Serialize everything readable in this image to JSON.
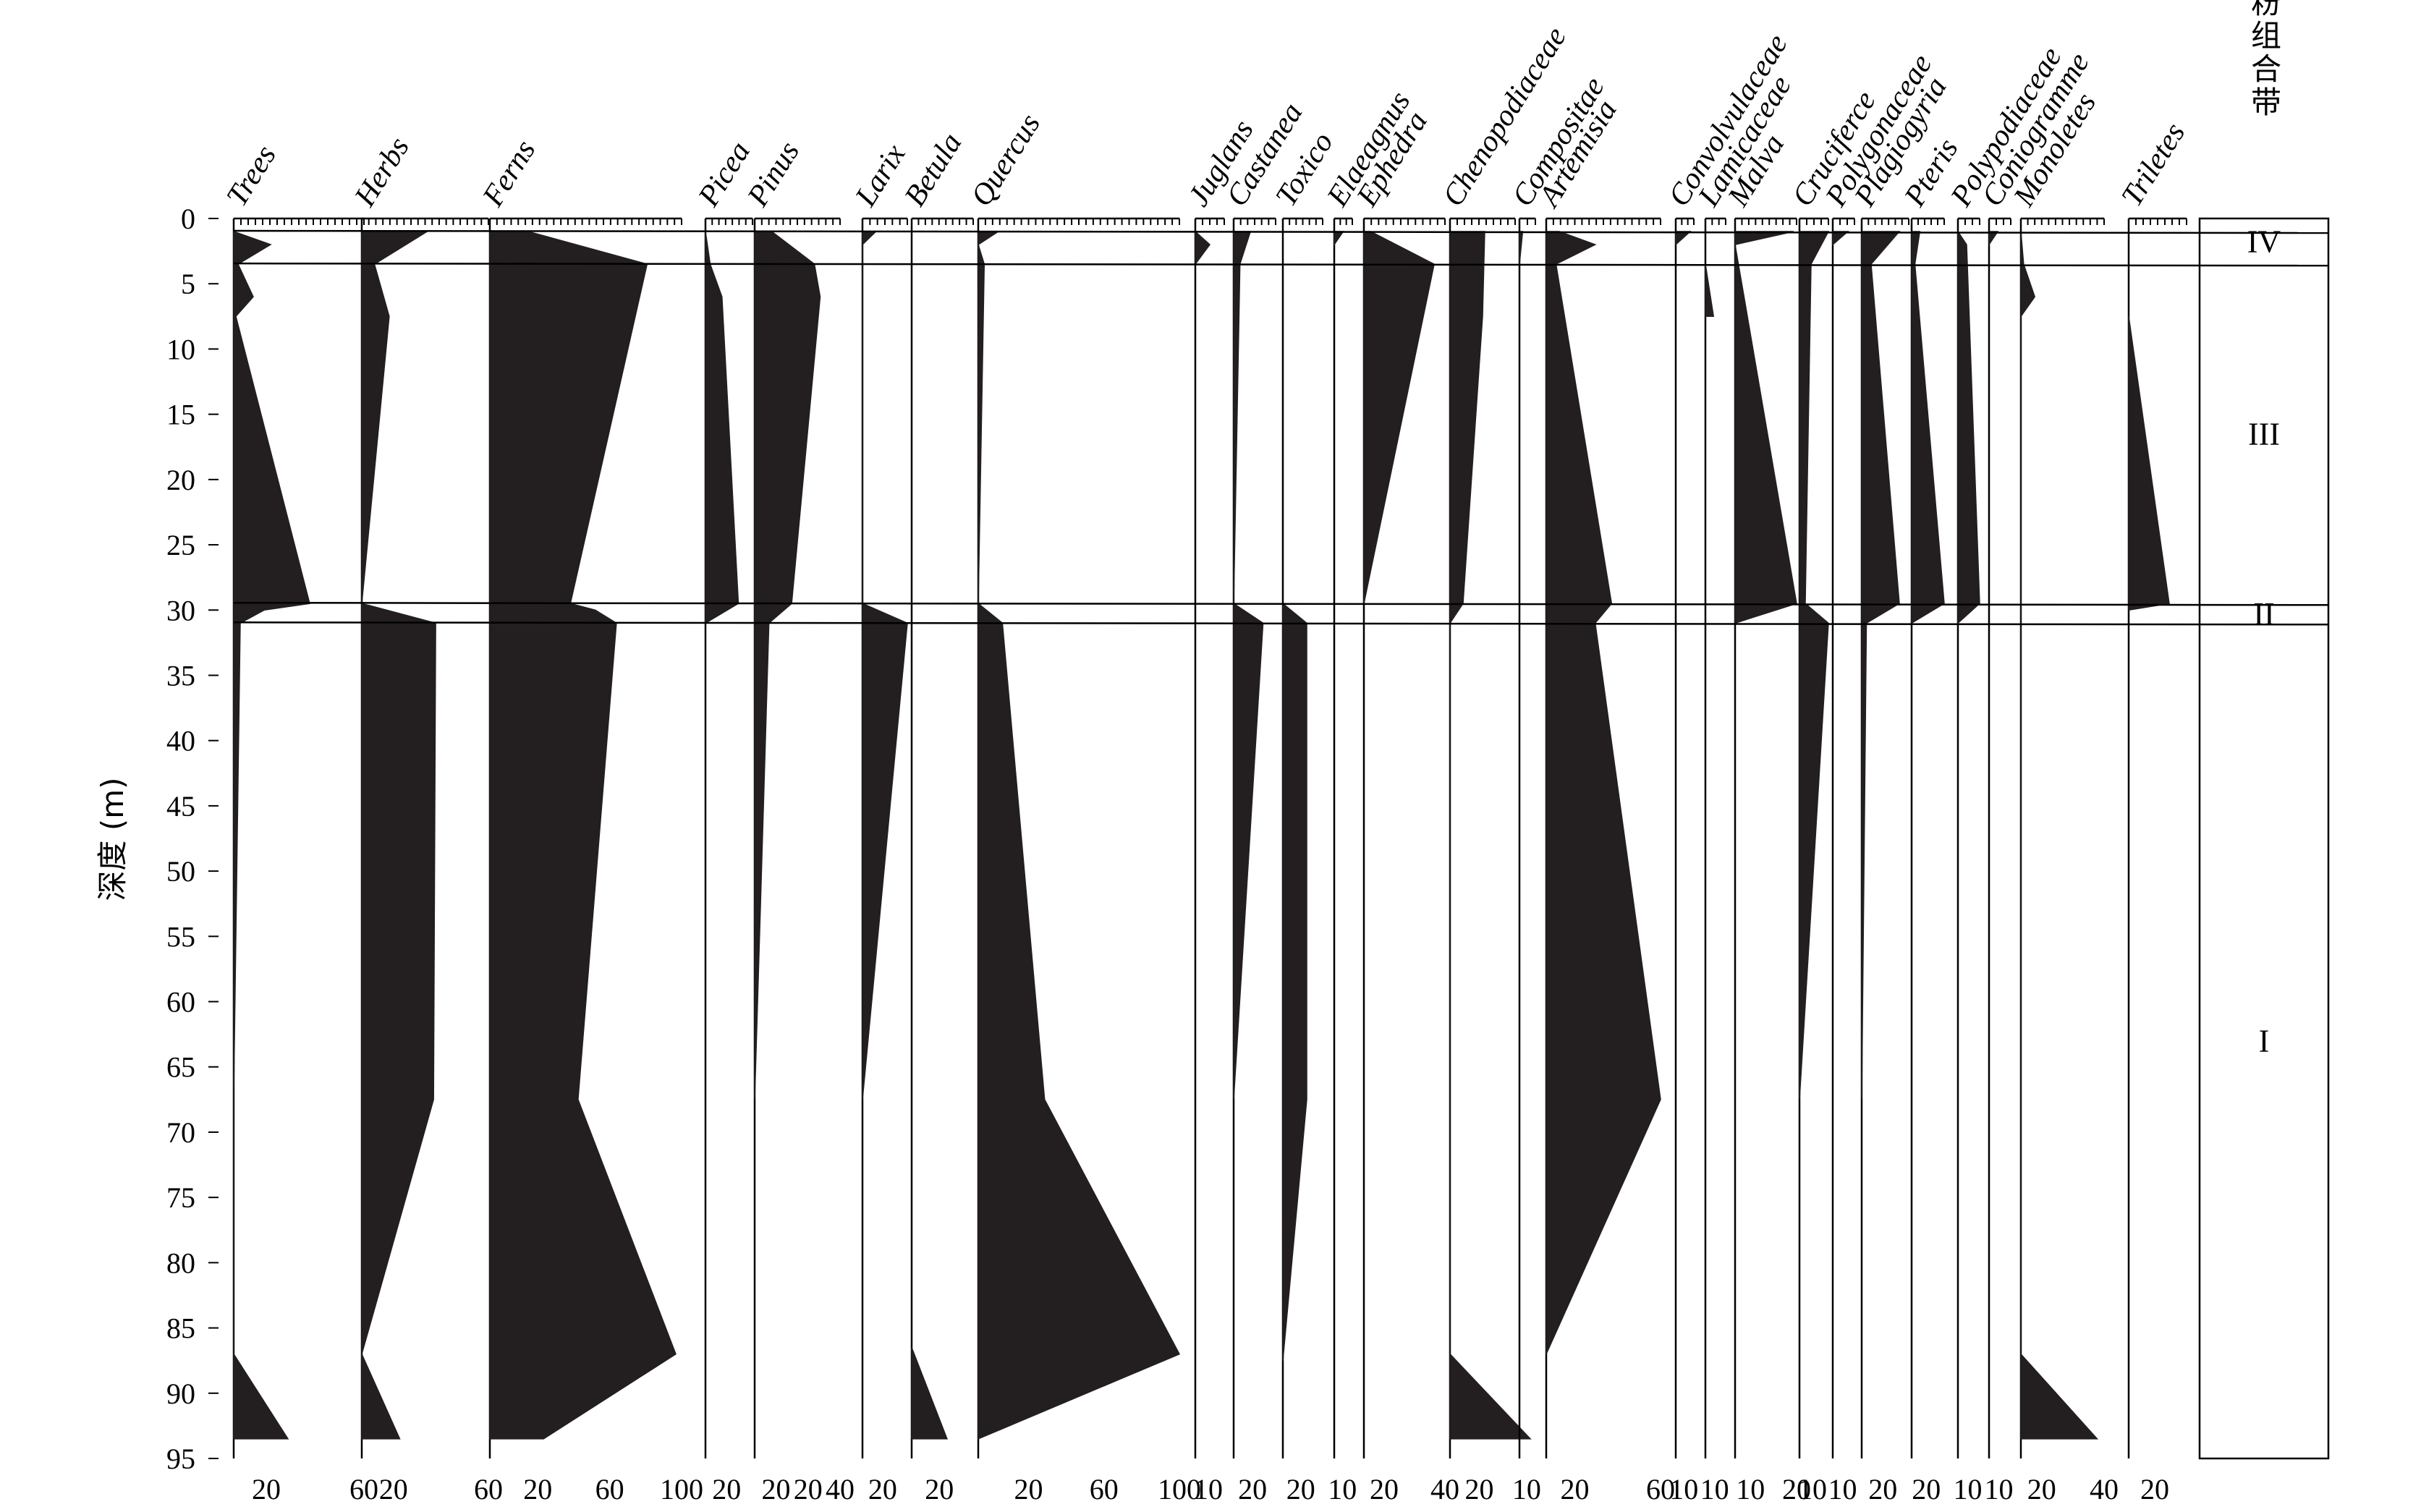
{
  "chart_data": {
    "type": "area",
    "title": "",
    "ylabel": "深度 (m)",
    "ylim": [
      0,
      95
    ],
    "y_ticks": [
      "0",
      "5",
      "10",
      "15",
      "20",
      "25",
      "30",
      "35",
      "40",
      "45",
      "50",
      "55",
      "60",
      "65",
      "70",
      "75",
      "80",
      "85",
      "90",
      "95"
    ],
    "zone_title": "孢粉组合带",
    "zones": [
      {
        "label": "IV",
        "top": 0,
        "bottom": 3.5
      },
      {
        "label": "III",
        "top": 3.5,
        "bottom": 29.5
      },
      {
        "label": "II",
        "top": 29.5,
        "bottom": 31
      },
      {
        "label": "I",
        "top": 31,
        "bottom": 95
      }
    ],
    "series": [
      {
        "name": "Trees",
        "max": 60,
        "tick_labels": [
          "20",
          "60"
        ],
        "depths": [
          1,
          2,
          3.5,
          6,
          7.5,
          29.5,
          30,
          31,
          67,
          87,
          93.5
        ],
        "values": [
          0,
          17,
          2,
          9,
          1,
          35,
          14,
          3,
          0,
          0,
          25
        ]
      },
      {
        "name": "Herbs",
        "max": 60,
        "tick_labels": [
          "20",
          "60"
        ],
        "depths": [
          1,
          3.5,
          7.5,
          29.5,
          31,
          67.5,
          87,
          93.5
        ],
        "values": [
          31,
          6,
          13,
          0,
          35,
          34,
          0,
          18
        ]
      },
      {
        "name": "Ferns",
        "max": 100,
        "tick_labels": [
          "20",
          "60",
          "100"
        ],
        "depths": [
          1,
          3.5,
          29.5,
          30,
          31,
          67.5,
          87,
          93.5
        ],
        "values": [
          20,
          82,
          42,
          55,
          66,
          46,
          97,
          28
        ]
      },
      {
        "name": "Picea",
        "max": 20,
        "tick_labels": [
          "20"
        ],
        "depths": [
          1,
          3.5,
          6,
          29.5,
          31
        ],
        "values": [
          0,
          2,
          7,
          14,
          0
        ]
      },
      {
        "name": "Pinus",
        "max": 60,
        "tick_labels": [
          "20",
          "20",
          "40"
        ],
        "depths": [
          1,
          3.5,
          6,
          29.5,
          31,
          67.5
        ],
        "values": [
          12,
          42,
          46,
          26,
          10,
          0
        ]
      },
      {
        "name": "Larix",
        "max": 20,
        "tick_labels": [
          "20"
        ],
        "depths": [
          1,
          2,
          29.5,
          31,
          67.5
        ],
        "values": [
          6,
          0,
          0,
          20,
          0
        ]
      },
      {
        "name": "Betula",
        "max": 40,
        "tick_labels": [
          "20"
        ],
        "depths": [
          86.5,
          93.5
        ],
        "values": [
          0,
          23
        ]
      },
      {
        "name": "Quercus",
        "max": 100,
        "tick_labels": [
          "20",
          "60",
          "100"
        ],
        "depths": [
          1,
          2,
          3.5,
          29.5,
          31,
          67.5,
          87,
          93.5
        ],
        "values": [
          10,
          0,
          3,
          0,
          12,
          33,
          100,
          0
        ]
      },
      {
        "name": "Juglans",
        "max": 10,
        "tick_labels": [
          "10"
        ],
        "depths": [
          1,
          2,
          3.5
        ],
        "values": [
          0,
          5,
          0
        ]
      },
      {
        "name": "Castanea",
        "max": 20,
        "tick_labels": [
          "20"
        ],
        "depths": [
          1,
          3.5,
          29.5,
          31,
          67.5
        ],
        "values": [
          8,
          3,
          0,
          14,
          0
        ]
      },
      {
        "name": "Toxico",
        "max": 20,
        "tick_labels": [
          "20"
        ],
        "depths": [
          29.5,
          31,
          67.5,
          87.5
        ],
        "values": [
          0,
          12,
          12,
          0
        ]
      },
      {
        "name": "Elaeagnus",
        "max": 10,
        "tick_labels": [
          "10"
        ],
        "depths": [
          1,
          2
        ],
        "values": [
          5,
          0
        ]
      },
      {
        "name": "Ephedra",
        "max": 60,
        "tick_labels": [
          "20",
          "40"
        ],
        "depths": [
          1,
          3.5,
          29.5
        ],
        "values": [
          5,
          52,
          0
        ]
      },
      {
        "name": "Chenopodiaceae",
        "max": 30,
        "tick_labels": [
          "20"
        ],
        "depths": [
          1,
          7.5,
          29.5,
          31,
          87,
          93.5
        ],
        "values": [
          16,
          15,
          6,
          0,
          0,
          37
        ]
      },
      {
        "name": "Compositae",
        "max": 10,
        "tick_labels": [
          "10"
        ],
        "depths": [
          1,
          3.5
        ],
        "values": [
          2,
          0
        ]
      },
      {
        "name": "Artemisia",
        "max": 70,
        "tick_labels": [
          "20",
          "60"
        ],
        "depths": [
          1,
          2,
          3.5,
          29.5,
          31,
          67.5,
          87
        ],
        "values": [
          8,
          30,
          6,
          40,
          30,
          70,
          0
        ]
      },
      {
        "name": "Convolvulaceae",
        "max": 10,
        "tick_labels": [
          "10"
        ],
        "depths": [
          1,
          2
        ],
        "values": [
          8,
          0
        ]
      },
      {
        "name": "Lamicaceae",
        "max": 10,
        "tick_labels": [
          "10"
        ],
        "depths": [
          3.5,
          7.5
        ],
        "values": [
          0,
          4
        ]
      },
      {
        "name": "Malva",
        "max": 40,
        "tick_labels": [
          "10",
          "20"
        ],
        "depths": [
          1,
          2,
          29.5,
          31
        ],
        "values": [
          38,
          0,
          40,
          0
        ]
      },
      {
        "name": "Cruciferce",
        "max": 10,
        "tick_labels": [
          "10"
        ],
        "depths": [
          1,
          3.5,
          29.5,
          31,
          67.5
        ],
        "values": [
          10,
          4,
          2,
          10,
          0
        ]
      },
      {
        "name": "Polygonaceae",
        "max": 10,
        "tick_labels": [
          "10"
        ],
        "depths": [
          1,
          2
        ],
        "values": [
          7,
          0
        ]
      },
      {
        "name": "Plagiogyria",
        "max": 20,
        "tick_labels": [
          "20"
        ],
        "depths": [
          1,
          3.5,
          29.5,
          31,
          67.5
        ],
        "values": [
          16,
          4,
          16,
          2,
          0
        ]
      },
      {
        "name": "Pteris",
        "max": 20,
        "tick_labels": [
          "20"
        ],
        "depths": [
          1,
          3.5,
          29.5,
          31
        ],
        "values": [
          5,
          2,
          20,
          0
        ]
      },
      {
        "name": "Polypodiaceae",
        "max": 10,
        "tick_labels": [
          "10"
        ],
        "depths": [
          1,
          2,
          29.5,
          31
        ],
        "values": [
          0,
          4,
          10,
          0
        ]
      },
      {
        "name": "Coniogramme",
        "max": 10,
        "tick_labels": [
          "10"
        ],
        "depths": [
          1,
          2
        ],
        "values": [
          4,
          0
        ]
      },
      {
        "name": "Monoletes",
        "max": 60,
        "tick_labels": [
          "20",
          "40"
        ],
        "depths": [
          1,
          3.5,
          6,
          7.5,
          87,
          93.5
        ],
        "values": [
          0,
          2,
          10,
          0,
          0,
          55
        ]
      },
      {
        "name": "Triletes",
        "max": 40,
        "tick_labels": [
          "20"
        ],
        "depths": [
          7.5,
          29.5,
          30
        ],
        "values": [
          0,
          28,
          0
        ]
      }
    ]
  }
}
